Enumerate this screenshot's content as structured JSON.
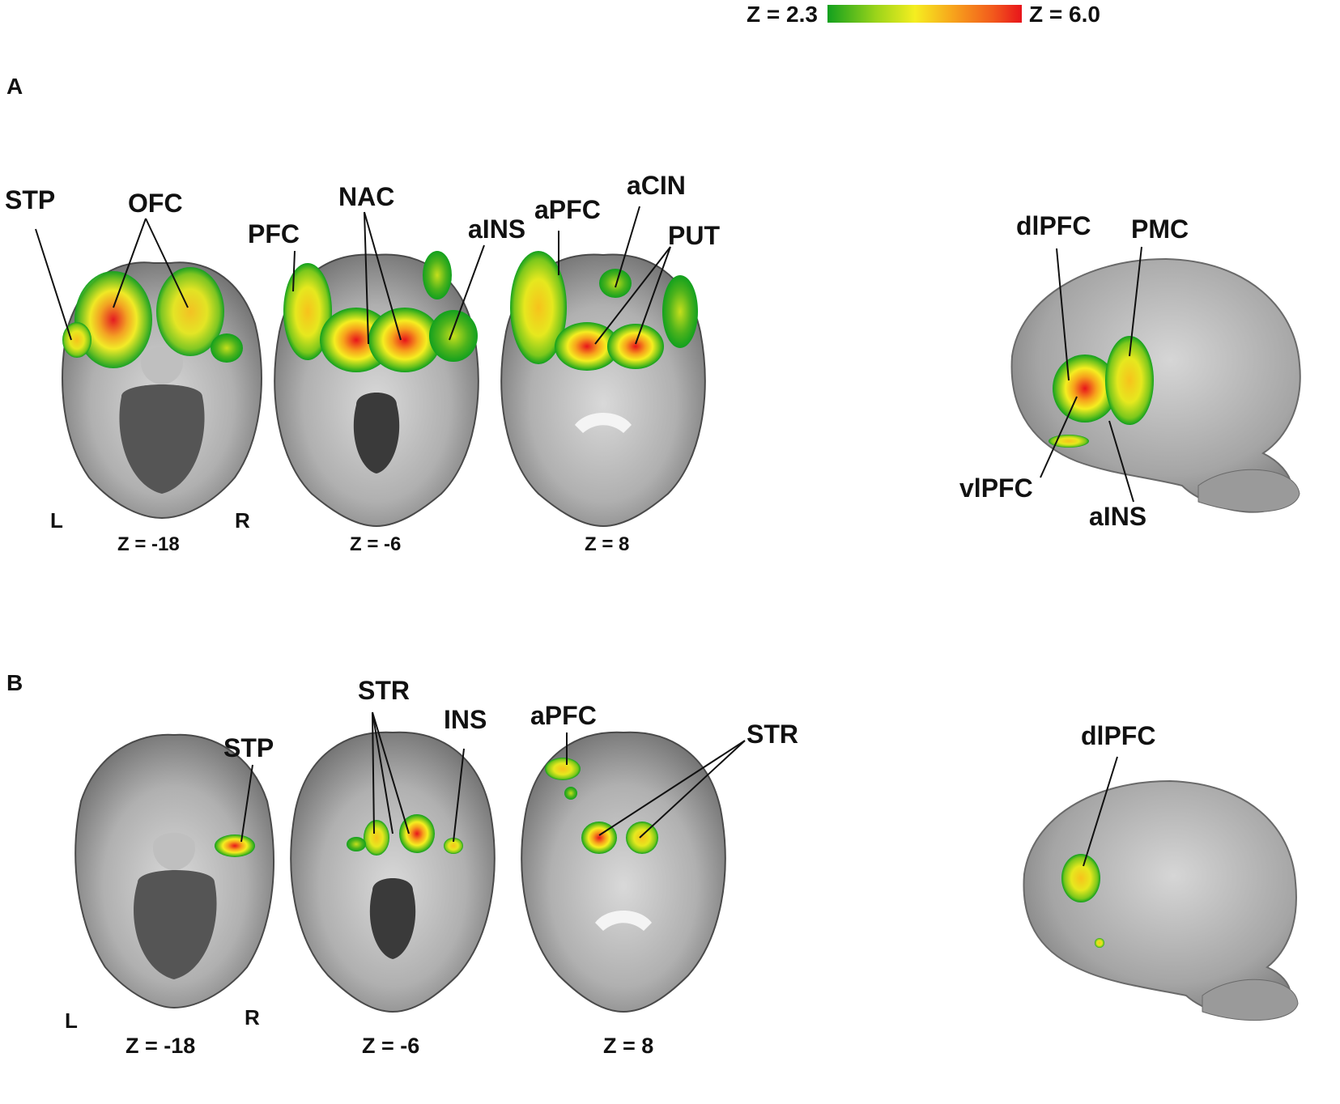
{
  "colorbar": {
    "min_label": "Z = 2.3",
    "max_label": "Z = 6.0",
    "colors": [
      "#12a01e",
      "#9bd41a",
      "#f5ee20",
      "#f7a21c",
      "#f25a1c",
      "#e8141b"
    ]
  },
  "panel_a": {
    "letter": "A",
    "slices": [
      {
        "z_label": "Z = -18",
        "left": "L",
        "right": "R",
        "regions": [
          "STP",
          "OFC"
        ]
      },
      {
        "z_label": "Z = -6",
        "regions": [
          "PFC",
          "NAC",
          "aINS"
        ]
      },
      {
        "z_label": "Z = 8",
        "regions": [
          "aPFC",
          "aCIN",
          "PUT"
        ]
      }
    ],
    "surface_regions": [
      "dlPFC",
      "PMC",
      "vlPFC",
      "aINS"
    ]
  },
  "panel_b": {
    "letter": "B",
    "slices": [
      {
        "z_label": "Z = -18",
        "left": "L",
        "right": "R",
        "regions": [
          "STP"
        ]
      },
      {
        "z_label": "Z = -6",
        "regions": [
          "STR",
          "INS"
        ]
      },
      {
        "z_label": "Z = 8",
        "regions": [
          "aPFC",
          "STR"
        ]
      }
    ],
    "surface_regions": [
      "dlPFC"
    ]
  }
}
